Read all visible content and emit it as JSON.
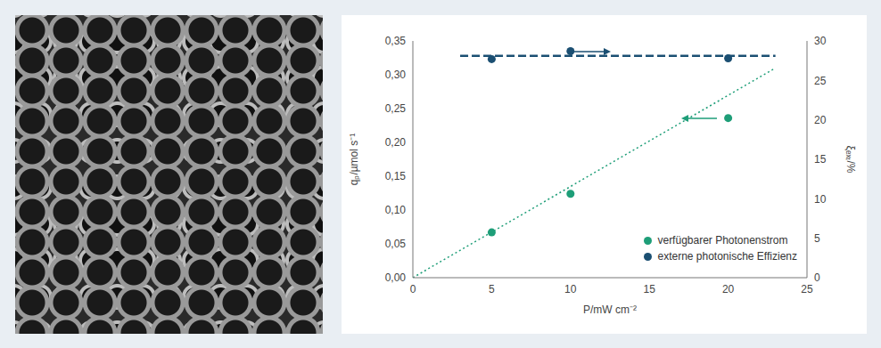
{
  "chart_data": {
    "type": "scatter",
    "xlabel": "P/mW cm⁻²",
    "ylabel": "qₚ/µmol s⁻¹",
    "y2label": "ξₑₓₜ/%",
    "xlim": [
      0,
      25
    ],
    "xticks": [
      0,
      5,
      10,
      15,
      20,
      25
    ],
    "ylim": [
      0,
      0.35
    ],
    "yticks": [
      {
        "value": 0,
        "label": "0,00"
      },
      {
        "value": 0.05,
        "label": "0,05"
      },
      {
        "value": 0.1,
        "label": "0,10"
      },
      {
        "value": 0.15,
        "label": "0,15"
      },
      {
        "value": 0.2,
        "label": "0,20"
      },
      {
        "value": 0.25,
        "label": "0,25"
      },
      {
        "value": 0.3,
        "label": "0,30"
      },
      {
        "value": 0.35,
        "label": "0,35"
      }
    ],
    "y2lim": [
      0,
      30
    ],
    "y2ticks": [
      0,
      5,
      10,
      15,
      20,
      25,
      30
    ],
    "grid": false,
    "legend": "lower right",
    "series": [
      {
        "name": "verfügbarer Photonenstrom",
        "color": "#1e9e78",
        "marker": "circle",
        "x": [
          5,
          10,
          20
        ],
        "values": [
          0.067,
          0.124,
          0.236
        ],
        "fit": {
          "x": [
            0,
            23
          ],
          "values": [
            0,
            0.31
          ],
          "line_style": "dotted"
        }
      },
      {
        "name": "externe photonische Effizienz",
        "color": "#1b4f72",
        "marker": "circle",
        "axis": "y2",
        "x": [
          5,
          10,
          20
        ],
        "values": [
          27.7,
          28.7,
          27.8
        ],
        "fit": {
          "x": [
            3,
            23
          ],
          "values": [
            28.1,
            28.1
          ],
          "line_style": "dashed"
        }
      }
    ]
  }
}
